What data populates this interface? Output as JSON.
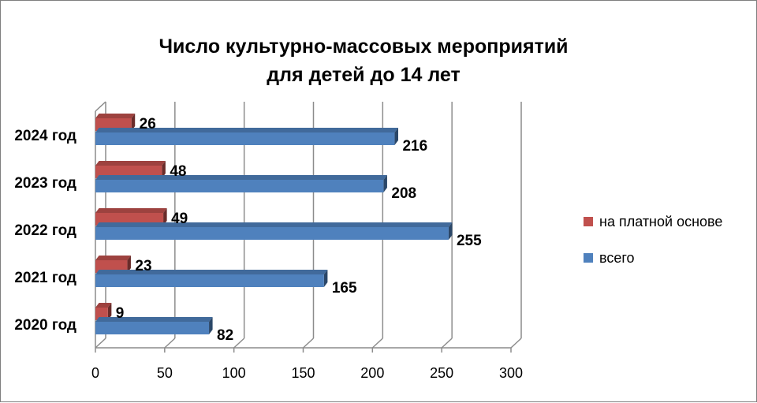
{
  "chart_data": {
    "type": "bar",
    "orientation": "horizontal",
    "three_d": true,
    "title_lines": [
      "Число культурно-массовых мероприятий",
      "для детей до 14 лет"
    ],
    "categories": [
      "2024 год",
      "2023 год",
      "2022 год",
      "2021 год",
      "2020 год"
    ],
    "series": [
      {
        "name": "на платной основе",
        "color": "#c0504d",
        "values": [
          26,
          48,
          49,
          23,
          9
        ]
      },
      {
        "name": "всего",
        "color": "#4f81bd",
        "values": [
          216,
          208,
          255,
          165,
          82
        ]
      }
    ],
    "xlim": [
      0,
      300
    ],
    "xticks": [
      "0",
      "50",
      "100",
      "150",
      "200",
      "250",
      "300"
    ],
    "grid": true,
    "legend_position": "right"
  }
}
